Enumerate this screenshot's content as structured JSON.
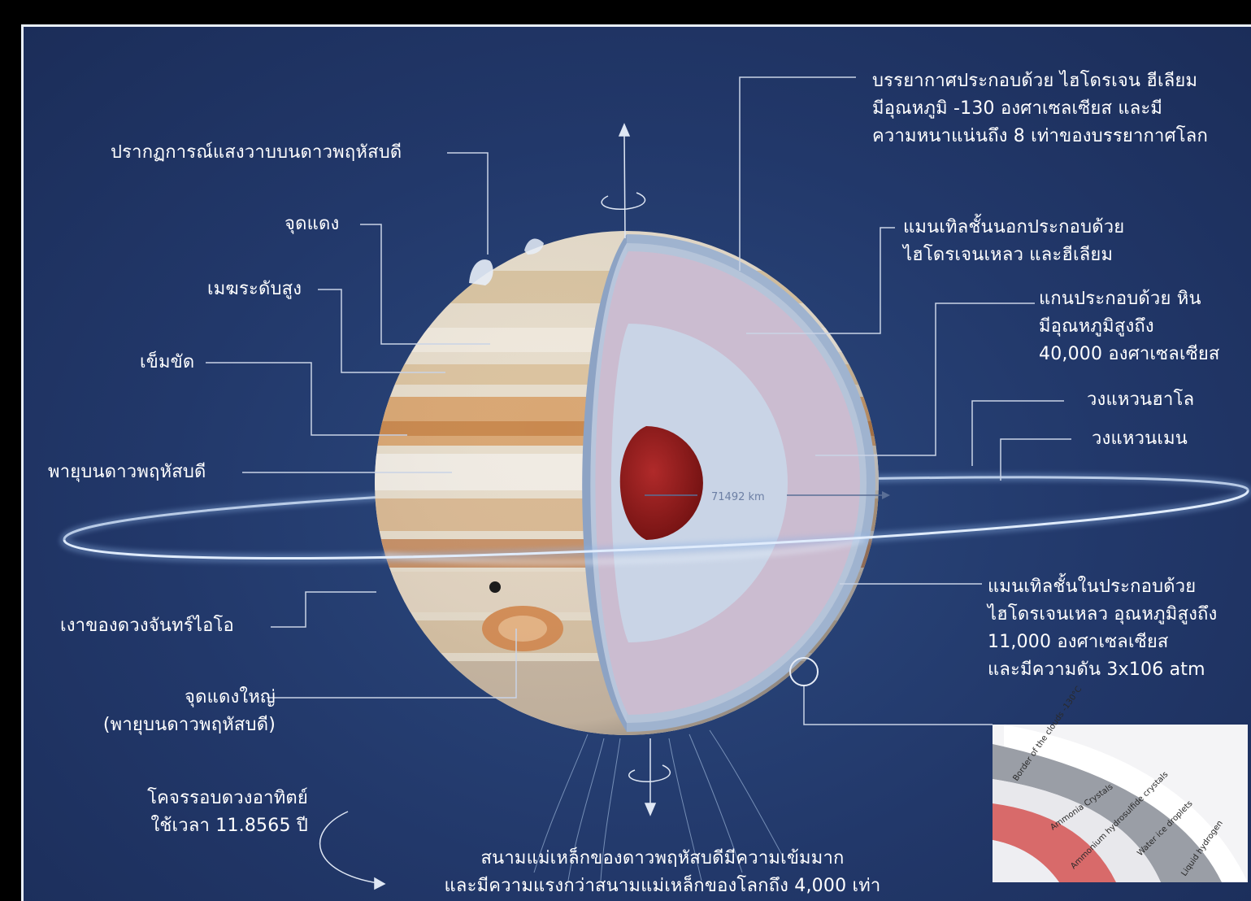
{
  "labels": {
    "atmosphere": [
      "บรรยากาศประกอบด้วย ไฮโดรเจน ฮีเลียม",
      "มีอุณหภูมิ -130 องศาเซลเซียส และมี",
      "ความหนาแน่นถึง 8 เท่าของบรรยากาศโลก"
    ],
    "aurora": "ปรากฏการณ์แสงวาบบนดาวพฤหัสบดี",
    "red_spot": "จุดแดง",
    "high_clouds": "เมฆระดับสูง",
    "belt": "เข็มขัด",
    "storm": "พายุบนดาวพฤหัสบดี",
    "outer_mantle": [
      "แมนเทิลชั้นนอกประกอบด้วย",
      "ไฮโดรเจนเหลว และฮีเลียม"
    ],
    "core": [
      "แกนประกอบด้วย หิน",
      "มีอุณหภูมิสูงถึง",
      "40,000 องศาเซลเซียส"
    ],
    "halo_ring": "วงแหวนฮาโล",
    "main_ring": "วงแหวนเมน",
    "radius": "71492 km",
    "inner_mantle": [
      "แมนเทิลชั้นในประกอบด้วย",
      "ไฮโดรเจนเหลว อุณหภูมิสูงถึง",
      "11,000 องศาเซลเซียส",
      "และมีความดัน 3x106 atm"
    ],
    "io_shadow": "เงาของดวงจันทร์ไอโอ",
    "great_red_spot": [
      "จุดแดงใหญ่",
      "(พายุบนดาวพฤหัสบดี)"
    ],
    "orbit": [
      "โคจรรอบดวงอาทิตย์",
      "ใช้เวลา 11.8565 ปี"
    ],
    "magnetic": [
      "สนามแม่เหล็กของดาวพฤหัสบดีมีความเข้มมาก",
      "และมีความแรงกว่าสนามแม่เหล็กของโลกถึง 4,000 เท่า"
    ]
  },
  "inset": {
    "layers": [
      "Border of the clouds -130°C",
      "Ammonia Crystals",
      "Ammonium hydrosulfide crystals",
      "Water ice droplets",
      "Liquid hydrogen"
    ]
  },
  "colors": {
    "background": "#22386a",
    "core": "#8e1a1a",
    "inner_mantle": "#c9d4e6",
    "outer_mantle": "#cbbcd0",
    "ring": "#a8c6ee",
    "leader_lines": "#c9d3e6",
    "inset_band_gray": "#9a9ea6",
    "inset_band_red": "#d86a6a"
  }
}
